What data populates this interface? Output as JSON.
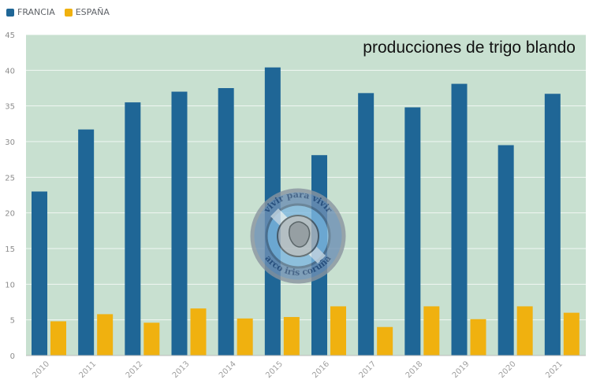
{
  "chart_data": {
    "type": "bar",
    "title": "producciones de trigo blando",
    "xlabel": "",
    "ylabel": "",
    "ylim": [
      0,
      45
    ],
    "yticks": [
      "0",
      "5",
      "10",
      "15",
      "20",
      "25",
      "30",
      "35",
      "40",
      "45"
    ],
    "categories": [
      "2010",
      "2011",
      "2012",
      "2013",
      "2014",
      "2015",
      "2016",
      "2017",
      "2018",
      "2019",
      "2020",
      "2021"
    ],
    "series": [
      {
        "name": "FRANCIA",
        "color": "#1f6696",
        "values": [
          23.0,
          31.7,
          35.5,
          37.0,
          37.5,
          40.4,
          28.1,
          36.8,
          34.8,
          38.1,
          29.5,
          36.7
        ]
      },
      {
        "name": "ESPAÑA",
        "color": "#f0b10f",
        "values": [
          4.8,
          5.8,
          4.6,
          6.6,
          5.2,
          5.4,
          6.9,
          4.0,
          6.9,
          5.1,
          6.9,
          6.0
        ]
      }
    ],
    "grid": true,
    "legend_position": "top-left",
    "plot_background": "#c8e0d0"
  },
  "watermark": {
    "text_top": "vivir para vivir",
    "text_bottom": "arco iris coruña"
  }
}
